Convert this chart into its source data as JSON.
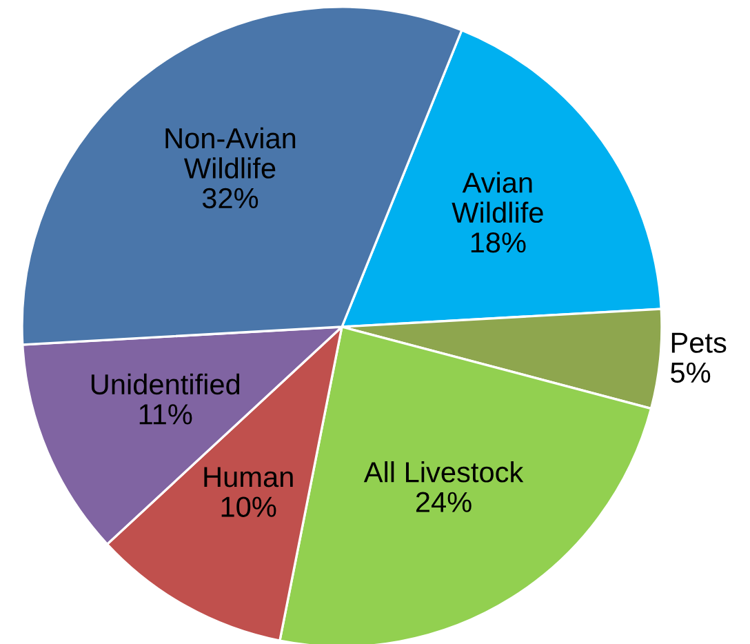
{
  "chart_data": {
    "type": "pie",
    "categories": [
      "Avian\nWildlife",
      "Pets",
      "All Livestock",
      "Human",
      "Unidentified",
      "Non-Avian\nWildlife"
    ],
    "values": [
      18,
      5,
      24,
      10,
      11,
      32
    ],
    "colors": [
      "#00b0f0",
      "#8ea64e",
      "#92d050",
      "#c0504d",
      "#8064a2",
      "#4a76aa"
    ],
    "value_labels": [
      "18%",
      "5%",
      "24%",
      "10%",
      "11%",
      "32%"
    ],
    "legend": false
  }
}
